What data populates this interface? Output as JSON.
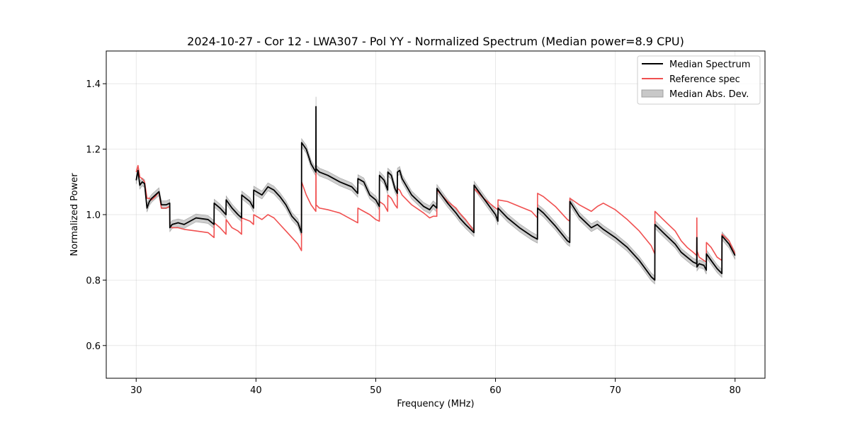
{
  "chart_data": {
    "type": "line",
    "title": "2024-10-27 - Cor 12 - LWA307 - Pol YY - Normalized Spectrum (Median power=8.9 CPU)",
    "xlabel": "Frequency (MHz)",
    "ylabel": "Normalized Power",
    "xlim": [
      27.5,
      82.5
    ],
    "ylim": [
      0.5,
      1.5
    ],
    "xticks": [
      30,
      40,
      50,
      60,
      70,
      80
    ],
    "yticks": [
      0.6,
      0.8,
      1.0,
      1.2,
      1.4
    ],
    "grid": true,
    "legend_position": "top-right",
    "legend": [
      "Median Spectrum",
      "Reference spec",
      "Median Abs. Dev."
    ],
    "colors": {
      "median": "#000000",
      "reference": "#f05050",
      "mad_fill": "#c8c8c8",
      "mad_edge": "#a0a0a0"
    },
    "series": [
      {
        "name": "Median Spectrum",
        "x": [
          30.0,
          30.15,
          30.3,
          30.5,
          30.7,
          30.9,
          31.1,
          31.3,
          31.6,
          31.9,
          32.1,
          32.5,
          32.8,
          32.81,
          33.0,
          33.5,
          34.0,
          35.0,
          36.0,
          36.5,
          36.51,
          37.0,
          37.5,
          37.51,
          38.0,
          38.5,
          38.8,
          38.81,
          39.5,
          39.8,
          39.81,
          40.5,
          41.0,
          41.5,
          42.0,
          42.5,
          43.0,
          43.5,
          43.8,
          43.81,
          44.2,
          44.6,
          45.0,
          45.01,
          45.02,
          45.3,
          46.0,
          46.5,
          47.0,
          48.0,
          48.5,
          48.51,
          49.0,
          49.5,
          50.0,
          50.3,
          50.31,
          50.7,
          51.0,
          51.01,
          51.3,
          51.6,
          51.8,
          51.81,
          52.0,
          52.2,
          53.0,
          54.0,
          54.5,
          54.8,
          55.1,
          55.11,
          55.5,
          56.0,
          56.7,
          57.0,
          57.5,
          58.2,
          58.21,
          59.0,
          60.0,
          60.2,
          60.21,
          61.0,
          62.0,
          63.0,
          63.5,
          63.51,
          64.0,
          65.0,
          66.0,
          66.2,
          66.21,
          67.0,
          68.0,
          68.5,
          69.0,
          70.0,
          71.0,
          72.0,
          73.0,
          73.3,
          73.31,
          74.0,
          75.0,
          75.5,
          76.0,
          76.5,
          76.8,
          76.81,
          76.82,
          77.0,
          77.4,
          77.6,
          77.61,
          78.0,
          78.5,
          78.9,
          78.91,
          79.5,
          80.0
        ],
        "values": [
          1.105,
          1.135,
          1.09,
          1.1,
          1.095,
          1.02,
          1.04,
          1.05,
          1.06,
          1.07,
          1.03,
          1.03,
          1.035,
          0.96,
          0.97,
          0.975,
          0.97,
          0.99,
          0.985,
          0.97,
          1.035,
          1.02,
          1.0,
          1.045,
          1.02,
          1.0,
          0.99,
          1.06,
          1.04,
          1.02,
          1.075,
          1.06,
          1.085,
          1.075,
          1.055,
          1.03,
          0.995,
          0.975,
          0.945,
          1.22,
          1.2,
          1.155,
          1.13,
          1.33,
          1.14,
          1.13,
          1.12,
          1.11,
          1.1,
          1.085,
          1.065,
          1.11,
          1.1,
          1.06,
          1.045,
          1.025,
          1.12,
          1.105,
          1.075,
          1.13,
          1.12,
          1.08,
          1.065,
          1.13,
          1.135,
          1.11,
          1.06,
          1.025,
          1.015,
          1.03,
          1.02,
          1.08,
          1.06,
          1.035,
          1.005,
          0.99,
          0.97,
          0.945,
          1.09,
          1.05,
          1.0,
          0.98,
          1.02,
          0.99,
          0.96,
          0.935,
          0.925,
          1.02,
          1.005,
          0.965,
          0.92,
          0.915,
          1.04,
          0.995,
          0.96,
          0.97,
          0.955,
          0.93,
          0.9,
          0.86,
          0.81,
          0.8,
          0.97,
          0.945,
          0.91,
          0.885,
          0.87,
          0.855,
          0.85,
          0.93,
          0.84,
          0.85,
          0.845,
          0.83,
          0.88,
          0.86,
          0.835,
          0.82,
          0.935,
          0.91,
          0.875
        ]
      },
      {
        "name": "Reference spec",
        "x": [
          30.0,
          30.15,
          30.3,
          30.5,
          30.7,
          30.9,
          31.1,
          31.3,
          31.6,
          31.9,
          32.1,
          32.5,
          32.8,
          32.81,
          33.0,
          33.5,
          34.0,
          35.0,
          36.0,
          36.5,
          36.51,
          37.0,
          37.5,
          37.51,
          38.0,
          38.5,
          38.8,
          38.81,
          39.5,
          39.8,
          39.81,
          40.5,
          41.0,
          41.5,
          42.0,
          42.5,
          43.0,
          43.5,
          43.8,
          43.81,
          44.2,
          44.6,
          45.0,
          45.01,
          45.02,
          45.3,
          46.0,
          46.5,
          47.0,
          48.0,
          48.5,
          48.51,
          49.0,
          49.5,
          50.0,
          50.3,
          50.31,
          50.7,
          51.0,
          51.01,
          51.3,
          51.6,
          51.8,
          51.81,
          52.0,
          52.2,
          53.0,
          54.0,
          54.5,
          54.8,
          55.1,
          55.11,
          55.5,
          56.0,
          56.7,
          57.0,
          57.5,
          58.2,
          58.21,
          59.0,
          60.0,
          60.2,
          60.21,
          61.0,
          62.0,
          63.0,
          63.5,
          63.51,
          64.0,
          65.0,
          66.0,
          66.2,
          66.21,
          67.0,
          68.0,
          68.5,
          69.0,
          70.0,
          71.0,
          72.0,
          73.0,
          73.3,
          73.31,
          74.0,
          75.0,
          75.5,
          76.0,
          76.5,
          76.8,
          76.81,
          76.82,
          77.0,
          77.4,
          77.6,
          77.61,
          78.0,
          78.5,
          78.9,
          78.91,
          79.5,
          80.0
        ],
        "values": [
          1.13,
          1.15,
          1.115,
          1.11,
          1.1,
          1.05,
          1.05,
          1.045,
          1.055,
          1.07,
          1.02,
          1.02,
          1.025,
          0.965,
          0.96,
          0.96,
          0.955,
          0.95,
          0.945,
          0.93,
          0.975,
          0.96,
          0.94,
          0.985,
          0.96,
          0.95,
          0.94,
          0.99,
          0.98,
          0.97,
          1.0,
          0.985,
          1.0,
          0.99,
          0.97,
          0.95,
          0.93,
          0.91,
          0.89,
          1.1,
          1.06,
          1.03,
          1.01,
          1.18,
          1.03,
          1.02,
          1.015,
          1.01,
          1.005,
          0.985,
          0.975,
          1.02,
          1.01,
          1.0,
          0.985,
          0.98,
          1.04,
          1.03,
          1.01,
          1.06,
          1.05,
          1.03,
          1.02,
          1.08,
          1.075,
          1.06,
          1.03,
          1.005,
          0.99,
          0.995,
          0.995,
          1.075,
          1.06,
          1.04,
          1.02,
          1.005,
          0.985,
          0.95,
          1.08,
          1.05,
          1.02,
          1.015,
          1.045,
          1.04,
          1.025,
          1.01,
          0.99,
          1.065,
          1.055,
          1.025,
          0.985,
          0.98,
          1.05,
          1.03,
          1.01,
          1.025,
          1.035,
          1.015,
          0.985,
          0.95,
          0.905,
          0.88,
          1.01,
          0.985,
          0.95,
          0.92,
          0.9,
          0.885,
          0.875,
          0.99,
          0.89,
          0.87,
          0.86,
          0.855,
          0.915,
          0.9,
          0.87,
          0.86,
          0.94,
          0.92,
          0.88
        ]
      }
    ],
    "mad_band": {
      "name": "Median Abs. Dev.",
      "halfwidth": 0.012,
      "spike_halfwidth": 0.03
    }
  }
}
